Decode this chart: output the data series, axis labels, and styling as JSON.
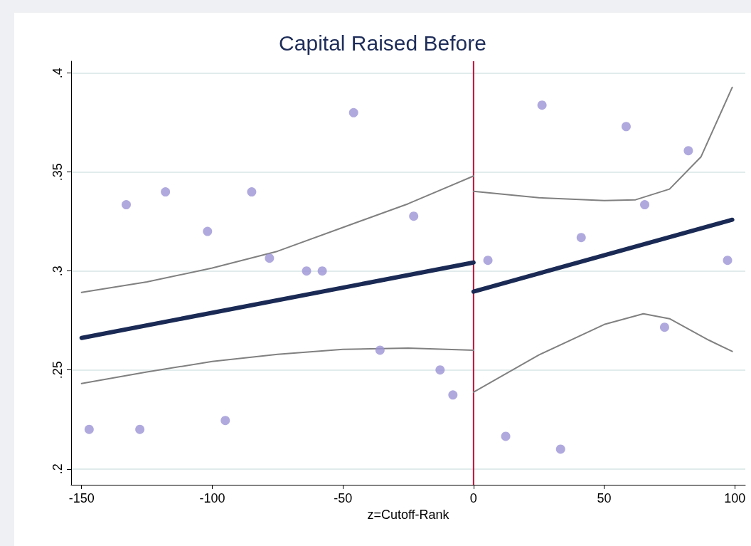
{
  "chart_data": {
    "type": "scatter",
    "title": "Capital Raised Before",
    "xlabel": "z=Cutoff-Rank",
    "xlim": [
      -154,
      104
    ],
    "xticks": [
      -150,
      -100,
      -50,
      0,
      50,
      100
    ],
    "ylim": [
      0.192,
      0.406
    ],
    "yticks": [
      {
        "value": 0.2,
        "label": ".2"
      },
      {
        "value": 0.25,
        "label": ".25"
      },
      {
        "value": 0.3,
        "label": ".3"
      },
      {
        "value": 0.35,
        "label": ".35"
      },
      {
        "value": 0.4,
        "label": ".4"
      }
    ],
    "grid": "y",
    "ref_lines": [
      {
        "axis": "x",
        "value": 0,
        "color": "#c0103a"
      }
    ],
    "series": [
      {
        "color": "#9b93d6",
        "marker": "circle",
        "x": [
          -147.1,
          -132.9,
          -127.7,
          -117.9,
          -101.8,
          -95.0,
          -84.9,
          -78.1,
          -63.9,
          -57.9,
          -45.9,
          -35.8,
          -22.9,
          -12.8,
          -7.9,
          5.5,
          12.3,
          26.2,
          33.3,
          41.2,
          58.4,
          65.5,
          73.1,
          82.2,
          97.2
        ],
        "values": [
          0.22,
          0.3335,
          0.22,
          0.34,
          0.32,
          0.2245,
          0.34,
          0.3065,
          0.3,
          0.3,
          0.38,
          0.26,
          0.3277,
          0.25,
          0.2374,
          0.3054,
          0.2165,
          0.3838,
          0.21,
          0.3169,
          0.373,
          0.3335,
          0.2716,
          0.3608,
          0.3054
        ]
      },
      {
        "type": "line",
        "color": "#1a2a55",
        "marker": "none",
        "x": [
          -150,
          0
        ],
        "values": [
          0.2662,
          0.3043
        ]
      },
      {
        "type": "line",
        "color": "#1a2a55",
        "marker": "none",
        "x": [
          0,
          99
        ],
        "values": [
          0.2896,
          0.3259
        ]
      },
      {
        "type": "line",
        "color": "#808080",
        "marker": "none",
        "x": [
          -150,
          -125,
          -100,
          -75,
          -50,
          -25,
          0
        ],
        "values": [
          0.2892,
          0.2945,
          0.3015,
          0.31,
          0.322,
          0.334,
          0.348
        ]
      },
      {
        "type": "line",
        "color": "#808080",
        "marker": "none",
        "x": [
          -150,
          -125,
          -100,
          -75,
          -50,
          -25,
          0
        ],
        "values": [
          0.2432,
          0.249,
          0.2543,
          0.2579,
          0.2604,
          0.2611,
          0.26
        ]
      },
      {
        "type": "line",
        "color": "#808080",
        "marker": "none",
        "x": [
          0,
          25,
          50,
          62,
          75,
          87,
          99
        ],
        "values": [
          0.3403,
          0.337,
          0.3356,
          0.336,
          0.3414,
          0.3576,
          0.3928
        ]
      },
      {
        "type": "line",
        "color": "#808080",
        "marker": "none",
        "x": [
          0,
          25,
          50,
          65,
          75,
          90,
          99
        ],
        "values": [
          0.2388,
          0.2576,
          0.273,
          0.2784,
          0.2759,
          0.2651,
          0.2594
        ]
      }
    ]
  }
}
